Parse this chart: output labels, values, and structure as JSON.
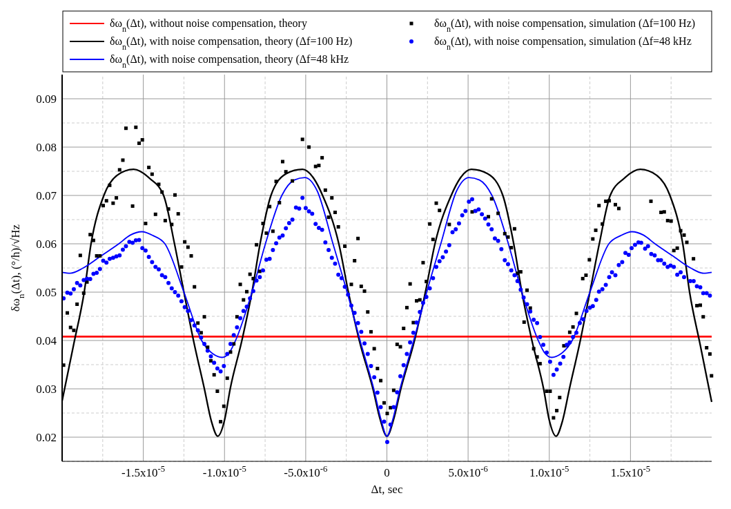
{
  "chart_data": {
    "type": "line",
    "xlabel": "Δ$_{}$t, sec",
    "ylabel": "δω$_{n}$(Δt), (°/h)/√Hz",
    "xlim": [
      -2e-05,
      2e-05
    ],
    "ylim": [
      0.015,
      0.095
    ],
    "xticks": [
      {
        "value": -1.5e-05,
        "label": "-1.5x10$^{-5}$"
      },
      {
        "value": -1e-05,
        "label": "-1.0x10$^{-5}$"
      },
      {
        "value": -5e-06,
        "label": "-5.0x10$^{-6}$"
      },
      0,
      {
        "value": 5e-06,
        "label": "5.0x10$^{-6}$"
      },
      {
        "value": 1e-05,
        "label": "1.0x10$^{-5}$"
      },
      {
        "value": 1.5e-05,
        "label": "1.5x10$^{-5}$"
      }
    ],
    "yticks": [
      0.02,
      0.03,
      0.04,
      0.05,
      0.06,
      0.07,
      0.08,
      0.09
    ],
    "grid": true,
    "legend": "top right",
    "series": [
      {
        "name": "δω$_{n}$(Δt), without noise compensation, theory",
        "color": "#ff0000",
        "x": [
          -2e-05,
          2e-05
        ],
        "values": [
          0.0408,
          0.0408
        ]
      },
      {
        "name": "δω$_{n}$(Δt), with noise compensation, theory (Δf=100 Hz)",
        "color": "#000000",
        "x": [
          -2e-05,
          -1.93e-05,
          -1.864e-05,
          -1.822e-05,
          -1.743e-05,
          -1.66e-05,
          -1.56e-05,
          -1.46e-05,
          -1.375e-05,
          -1.308e-05,
          -1.25e-05,
          -1.191e-05,
          -1.124e-05,
          -1.08e-05,
          -1.042e-05,
          -1e-05,
          -9.65e-06,
          -8.93e-06,
          -8.31e-06,
          -7.81e-06,
          -7.14e-06,
          -6.2e-06,
          -5.2e-06,
          -4.5e-06,
          -3.96e-06,
          -2.96e-06,
          -2.37e-06,
          -1.7e-06,
          -8.6e-07,
          -4e-07,
          0,
          4e-07,
          8.6e-07,
          1.7e-06,
          2.37e-06,
          2.96e-06,
          3.96e-06,
          4.5e-06,
          5.2e-06,
          6.2e-06,
          7.14e-06,
          7.81e-06,
          8.31e-06,
          8.93e-06,
          9.65e-06,
          1e-05,
          1.042e-05,
          1.08e-05,
          1.124e-05,
          1.191e-05,
          1.25e-05,
          1.308e-05,
          1.375e-05,
          1.46e-05,
          1.56e-05,
          1.66e-05,
          1.743e-05,
          1.822e-05,
          1.864e-05,
          1.93e-05,
          2e-05
        ],
        "values": [
          0.0275,
          0.039,
          0.05,
          0.06,
          0.07,
          0.0742,
          0.0754,
          0.0735,
          0.07,
          0.06,
          0.05,
          0.04,
          0.03,
          0.0232,
          0.0202,
          0.0235,
          0.03,
          0.04,
          0.05,
          0.06,
          0.07,
          0.0745,
          0.0754,
          0.0735,
          0.07,
          0.06,
          0.05,
          0.04,
          0.03,
          0.0235,
          0.0202,
          0.0235,
          0.03,
          0.04,
          0.05,
          0.06,
          0.07,
          0.0735,
          0.0754,
          0.0745,
          0.07,
          0.06,
          0.05,
          0.04,
          0.03,
          0.0235,
          0.0202,
          0.0232,
          0.03,
          0.04,
          0.05,
          0.06,
          0.07,
          0.0735,
          0.0754,
          0.0742,
          0.07,
          0.06,
          0.05,
          0.039,
          0.0273
        ]
      },
      {
        "name": "δω$_{n}$(Δt), with noise compensation, theory (Δf=48 kHz",
        "color": "#0000ff",
        "x": [
          -2e-05,
          -1.95e-05,
          -1.87e-05,
          -1.76e-05,
          -1.651e-05,
          -1.58e-05,
          -1.509e-05,
          -1.44e-05,
          -1.367e-05,
          -1.25e-05,
          -1.141e-05,
          -1.07e-05,
          -1.015e-05,
          -9.7e-06,
          -9.32e-06,
          -8.31e-06,
          -7.48e-06,
          -6.47e-06,
          -5.7e-06,
          -5.05e-06,
          -4.3e-06,
          -3.32e-06,
          -2.45e-06,
          -1.65e-06,
          -8.1e-07,
          -3.5e-07,
          0,
          3.5e-07,
          8.1e-07,
          1.65e-06,
          2.45e-06,
          3.32e-06,
          4.3e-06,
          5.05e-06,
          5.7e-06,
          6.47e-06,
          7.48e-06,
          8.31e-06,
          9.32e-06,
          9.7e-06,
          1.015e-05,
          1.07e-05,
          1.141e-05,
          1.25e-05,
          1.367e-05,
          1.44e-05,
          1.509e-05,
          1.58e-05,
          1.651e-05,
          1.76e-05,
          1.87e-05,
          1.95e-05,
          2e-05
        ],
        "values": [
          0.0541,
          0.0539,
          0.055,
          0.0575,
          0.06,
          0.0618,
          0.0625,
          0.0617,
          0.06,
          0.05,
          0.04,
          0.0372,
          0.0365,
          0.0375,
          0.04,
          0.05,
          0.06,
          0.07,
          0.0732,
          0.0737,
          0.071,
          0.06,
          0.05,
          0.04,
          0.03,
          0.0235,
          0.0202,
          0.0235,
          0.03,
          0.04,
          0.05,
          0.06,
          0.071,
          0.0737,
          0.0732,
          0.07,
          0.06,
          0.05,
          0.04,
          0.0375,
          0.0365,
          0.0372,
          0.04,
          0.05,
          0.06,
          0.0617,
          0.0625,
          0.0618,
          0.06,
          0.0575,
          0.055,
          0.0539,
          0.0541
        ]
      },
      {
        "name": "δω$_{n}$(Δt), with noise compensation, simulation (Δf=100 Hz)",
        "type": "scatter",
        "marker": "square",
        "color": "#000000",
        "x": [
          -1.991e-05,
          -1.968e-05,
          -1.948e-05,
          -1.928e-05,
          -1.908e-05,
          -1.888e-05,
          -1.867e-05,
          -1.847e-05,
          -1.827e-05,
          -1.807e-05,
          -1.787e-05,
          -1.767e-05,
          -1.747e-05,
          -1.727e-05,
          -1.707e-05,
          -1.686e-05,
          -1.666e-05,
          -1.646e-05,
          -1.626e-05,
          -1.607e-05,
          -1.566e-05,
          -1.546e-05,
          -1.526e-05,
          -1.506e-05,
          -1.486e-05,
          -1.466e-05,
          -1.446e-05,
          -1.425e-05,
          -1.405e-05,
          -1.385e-05,
          -1.365e-05,
          -1.345e-05,
          -1.325e-05,
          -1.305e-05,
          -1.285e-05,
          -1.265e-05,
          -1.245e-05,
          -1.225e-05,
          -1.205e-05,
          -1.185e-05,
          -1.164e-05,
          -1.144e-05,
          -1.124e-05,
          -1.104e-05,
          -1.084e-05,
          -1.064e-05,
          -1.044e-05,
          -1.024e-05,
          -1.004e-05,
          -9.83e-06,
          -9.63e-06,
          -9.43e-06,
          -9.23e-06,
          -9.03e-06,
          -8.83e-06,
          -8.63e-06,
          -8.43e-06,
          -8.23e-06,
          -8.03e-06,
          -7.83e-06,
          -7.63e-06,
          -7.42e-06,
          -7.22e-06,
          -7.02e-06,
          -6.82e-06,
          -6.62e-06,
          -6.42e-06,
          -6.22e-06,
          -5.82e-06,
          -5.2e-06,
          -4.8e-06,
          -4.39e-06,
          -4.19e-06,
          -3.99e-06,
          -3.79e-06,
          -3.59e-06,
          -3.39e-06,
          -3.19e-06,
          -2.99e-06,
          -2.59e-06,
          -2.19e-06,
          -1.99e-06,
          -1.78e-06,
          -1.58e-06,
          -1.38e-06,
          -1.18e-06,
          -9.8e-07,
          -7.8e-07,
          -5.8e-07,
          -3.8e-07,
          -1.7e-07,
          2e-08,
          2.2e-07,
          4.2e-07,
          6.3e-07,
          8.3e-07,
          1.03e-06,
          1.23e-06,
          1.43e-06,
          1.63e-06,
          1.83e-06,
          2.03e-06,
          2.23e-06,
          2.43e-06,
          2.64e-06,
          2.84e-06,
          3.04e-06,
          3.24e-06,
          3.84e-06,
          5.25e-06,
          5.45e-06,
          6.25e-06,
          6.45e-06,
          6.85e-06,
          7.26e-06,
          7.46e-06,
          7.66e-06,
          7.86e-06,
          8.04e-06,
          8.24e-06,
          8.45e-06,
          8.63e-06,
          8.83e-06,
          9.04e-06,
          9.25e-06,
          9.43e-06,
          9.84e-06,
          1.005e-05,
          1.026e-05,
          1.046e-05,
          1.064e-05,
          1.09e-05,
          1.108e-05,
          1.126e-05,
          1.146e-05,
          1.167e-05,
          1.206e-05,
          1.226e-05,
          1.247e-05,
          1.268e-05,
          1.286e-05,
          1.306e-05,
          1.327e-05,
          1.348e-05,
          1.369e-05,
          1.407e-05,
          1.428e-05,
          1.626e-05,
          1.688e-05,
          1.708e-05,
          1.729e-05,
          1.75e-05,
          1.767e-05,
          1.788e-05,
          1.809e-05,
          1.83e-05,
          1.847e-05,
          1.888e-05,
          1.909e-05,
          1.93e-05,
          1.948e-05,
          1.969e-05,
          1.989e-05,
          1.999e-05
        ],
        "values": [
          0.0349,
          0.0457,
          0.0427,
          0.0421,
          0.0475,
          0.0576,
          0.0498,
          0.0521,
          0.0619,
          0.0607,
          0.0575,
          0.0575,
          0.0679,
          0.0689,
          0.0721,
          0.0684,
          0.0695,
          0.0753,
          0.0773,
          0.0839,
          0.0678,
          0.0841,
          0.0808,
          0.0815,
          0.0642,
          0.0758,
          0.0744,
          0.0661,
          0.0723,
          0.0707,
          0.0648,
          0.0672,
          0.064,
          0.0701,
          0.0662,
          0.0552,
          0.0604,
          0.0593,
          0.0575,
          0.0511,
          0.0436,
          0.0416,
          0.0449,
          0.0386,
          0.0358,
          0.0329,
          0.0295,
          0.0232,
          0.0264,
          0.0322,
          0.0376,
          0.0393,
          0.0449,
          0.0516,
          0.0484,
          0.0501,
          0.0537,
          0.0528,
          0.0598,
          0.0543,
          0.0642,
          0.0622,
          0.0677,
          0.0626,
          0.0729,
          0.0685,
          0.077,
          0.0749,
          0.073,
          0.0816,
          0.08,
          0.076,
          0.0762,
          0.0778,
          0.0711,
          0.0655,
          0.0695,
          0.0665,
          0.0635,
          0.0595,
          0.0516,
          0.0565,
          0.0611,
          0.0512,
          0.0502,
          0.0459,
          0.0418,
          0.0383,
          0.0342,
          0.0317,
          0.0271,
          0.0249,
          0.0261,
          0.0297,
          0.0392,
          0.0387,
          0.0425,
          0.0468,
          0.0517,
          0.0437,
          0.0482,
          0.0484,
          0.0561,
          0.0522,
          0.0641,
          0.0609,
          0.0684,
          0.0669,
          0.064,
          0.0666,
          0.0668,
          0.0656,
          0.0693,
          0.0663,
          0.0621,
          0.0614,
          0.0592,
          0.0631,
          0.0539,
          0.0542,
          0.0438,
          0.0504,
          0.0467,
          0.0383,
          0.0366,
          0.0352,
          0.0295,
          0.0295,
          0.024,
          0.0255,
          0.0282,
          0.0389,
          0.039,
          0.0417,
          0.0428,
          0.0456,
          0.0528,
          0.0535,
          0.0567,
          0.061,
          0.0628,
          0.0679,
          0.0641,
          0.0688,
          0.0689,
          0.0681,
          0.0673,
          0.0688,
          0.0665,
          0.0666,
          0.0648,
          0.0647,
          0.0586,
          0.0591,
          0.0627,
          0.0618,
          0.0603,
          0.0569,
          0.0472,
          0.0473,
          0.0449,
          0.0385,
          0.0372,
          0.0327
        ]
      },
      {
        "name": "δω$_{n}$(Δt), with noise compensation, simulation (Δf=48 kHz",
        "type": "scatter",
        "marker": "circle",
        "color": "#0000ff",
        "x": [
          -1.991e-05,
          -1.968e-05,
          -1.948e-05,
          -1.928e-05,
          -1.908e-05,
          -1.888e-05,
          -1.867e-05,
          -1.847e-05,
          -1.827e-05,
          -1.807e-05,
          -1.787e-05,
          -1.767e-05,
          -1.747e-05,
          -1.727e-05,
          -1.707e-05,
          -1.686e-05,
          -1.666e-05,
          -1.646e-05,
          -1.626e-05,
          -1.607e-05,
          -1.586e-05,
          -1.566e-05,
          -1.546e-05,
          -1.526e-05,
          -1.506e-05,
          -1.486e-05,
          -1.466e-05,
          -1.446e-05,
          -1.425e-05,
          -1.405e-05,
          -1.385e-05,
          -1.365e-05,
          -1.345e-05,
          -1.325e-05,
          -1.305e-05,
          -1.285e-05,
          -1.265e-05,
          -1.245e-05,
          -1.225e-05,
          -1.205e-05,
          -1.185e-05,
          -1.164e-05,
          -1.144e-05,
          -1.124e-05,
          -1.104e-05,
          -1.084e-05,
          -1.064e-05,
          -1.044e-05,
          -1.024e-05,
          -1.004e-05,
          -9.83e-06,
          -9.63e-06,
          -9.43e-06,
          -9.23e-06,
          -9.03e-06,
          -8.83e-06,
          -8.63e-06,
          -8.43e-06,
          -8.23e-06,
          -8.03e-06,
          -7.83e-06,
          -7.63e-06,
          -7.42e-06,
          -7.22e-06,
          -7.02e-06,
          -6.82e-06,
          -6.62e-06,
          -6.42e-06,
          -6.22e-06,
          -6.02e-06,
          -5.82e-06,
          -5.6e-06,
          -5.4e-06,
          -5.2e-06,
          -5e-06,
          -4.8e-06,
          -4.6e-06,
          -4.39e-06,
          -4.19e-06,
          -3.99e-06,
          -3.79e-06,
          -3.59e-06,
          -3.39e-06,
          -3.19e-06,
          -2.99e-06,
          -2.79e-06,
          -2.59e-06,
          -2.39e-06,
          -2.19e-06,
          -1.99e-06,
          -1.78e-06,
          -1.58e-06,
          -1.38e-06,
          -1.18e-06,
          -9.8e-07,
          -7.8e-07,
          -5.8e-07,
          -3.8e-07,
          -1.7e-07,
          2e-08,
          2.2e-07,
          4.2e-07,
          6.3e-07,
          8.3e-07,
          1.03e-06,
          1.23e-06,
          1.43e-06,
          1.63e-06,
          1.83e-06,
          2.03e-06,
          2.23e-06,
          2.43e-06,
          2.64e-06,
          2.84e-06,
          3.04e-06,
          3.24e-06,
          3.44e-06,
          3.64e-06,
          3.84e-06,
          4.04e-06,
          4.24e-06,
          4.44e-06,
          4.64e-06,
          4.84e-06,
          5.05e-06,
          5.25e-06,
          5.45e-06,
          5.65e-06,
          5.85e-06,
          6.05e-06,
          6.25e-06,
          6.45e-06,
          6.65e-06,
          6.85e-06,
          7.05e-06,
          7.26e-06,
          7.46e-06,
          7.66e-06,
          7.86e-06,
          8.04e-06,
          8.24e-06,
          8.42e-06,
          8.63e-06,
          8.83e-06,
          9.04e-06,
          9.25e-06,
          9.43e-06,
          9.63e-06,
          9.84e-06,
          1.005e-05,
          1.026e-05,
          1.046e-05,
          1.067e-05,
          1.087e-05,
          1.108e-05,
          1.126e-05,
          1.146e-05,
          1.167e-05,
          1.188e-05,
          1.209e-05,
          1.229e-05,
          1.25e-05,
          1.268e-05,
          1.289e-05,
          1.306e-05,
          1.327e-05,
          1.348e-05,
          1.369e-05,
          1.386e-05,
          1.407e-05,
          1.428e-05,
          1.449e-05,
          1.469e-05,
          1.489e-05,
          1.507e-05,
          1.528e-05,
          1.549e-05,
          1.566e-05,
          1.59e-05,
          1.608e-05,
          1.628e-05,
          1.649e-05,
          1.67e-05,
          1.688e-05,
          1.708e-05,
          1.729e-05,
          1.747e-05,
          1.767e-05,
          1.788e-05,
          1.809e-05,
          1.83e-05,
          1.868e-05,
          1.889e-05,
          1.909e-05,
          1.93e-05,
          1.948e-05,
          1.969e-05,
          1.989e-05
        ],
        "values": [
          0.0487,
          0.0499,
          0.0497,
          0.0506,
          0.0519,
          0.0514,
          0.0525,
          0.0528,
          0.0527,
          0.0538,
          0.054,
          0.0548,
          0.0565,
          0.0561,
          0.0569,
          0.0571,
          0.0574,
          0.0576,
          0.0588,
          0.0595,
          0.0604,
          0.0602,
          0.0607,
          0.0608,
          0.0591,
          0.0586,
          0.0573,
          0.0562,
          0.0552,
          0.0547,
          0.0535,
          0.0531,
          0.0519,
          0.0508,
          0.05,
          0.0493,
          0.0481,
          0.0469,
          0.0461,
          0.0442,
          0.0431,
          0.0421,
          0.0406,
          0.0393,
          0.0379,
          0.0367,
          0.0354,
          0.0342,
          0.0336,
          0.0347,
          0.0372,
          0.0393,
          0.0411,
          0.0427,
          0.0446,
          0.0461,
          0.047,
          0.0487,
          0.0502,
          0.0524,
          0.0531,
          0.0545,
          0.0567,
          0.0569,
          0.0587,
          0.0601,
          0.0613,
          0.0617,
          0.0632,
          0.0643,
          0.065,
          0.0675,
          0.0673,
          0.0695,
          0.0674,
          0.0667,
          0.0662,
          0.0641,
          0.0633,
          0.0629,
          0.0603,
          0.0587,
          0.0571,
          0.0559,
          0.0536,
          0.0529,
          0.0511,
          0.0495,
          0.0472,
          0.0457,
          0.0436,
          0.0418,
          0.0394,
          0.0372,
          0.0347,
          0.0324,
          0.0292,
          0.0262,
          0.0232,
          0.019,
          0.0226,
          0.0262,
          0.0293,
          0.0326,
          0.0349,
          0.0372,
          0.0396,
          0.0416,
          0.0437,
          0.0459,
          0.0478,
          0.049,
          0.0508,
          0.0529,
          0.0552,
          0.0564,
          0.0572,
          0.0584,
          0.0597,
          0.0624,
          0.063,
          0.0642,
          0.0659,
          0.0668,
          0.0687,
          0.0692,
          0.0668,
          0.0671,
          0.0661,
          0.0652,
          0.064,
          0.063,
          0.0611,
          0.0606,
          0.0589,
          0.0566,
          0.0558,
          0.0545,
          0.0535,
          0.0523,
          0.0505,
          0.0489,
          0.0475,
          0.046,
          0.0443,
          0.0436,
          0.0407,
          0.0391,
          0.0375,
          0.0356,
          0.0329,
          0.034,
          0.0352,
          0.0366,
          0.0391,
          0.0396,
          0.0407,
          0.0416,
          0.0436,
          0.0444,
          0.0461,
          0.0468,
          0.0471,
          0.0484,
          0.0501,
          0.0506,
          0.0515,
          0.0531,
          0.0541,
          0.0535,
          0.0556,
          0.0562,
          0.0581,
          0.0577,
          0.0591,
          0.0598,
          0.0603,
          0.0602,
          0.059,
          0.0595,
          0.0579,
          0.0576,
          0.0566,
          0.0566,
          0.0559,
          0.0552,
          0.0555,
          0.0552,
          0.0536,
          0.0541,
          0.0531,
          0.0523,
          0.0523,
          0.0512,
          0.051,
          0.0498,
          0.0498,
          0.0493
        ]
      }
    ]
  }
}
